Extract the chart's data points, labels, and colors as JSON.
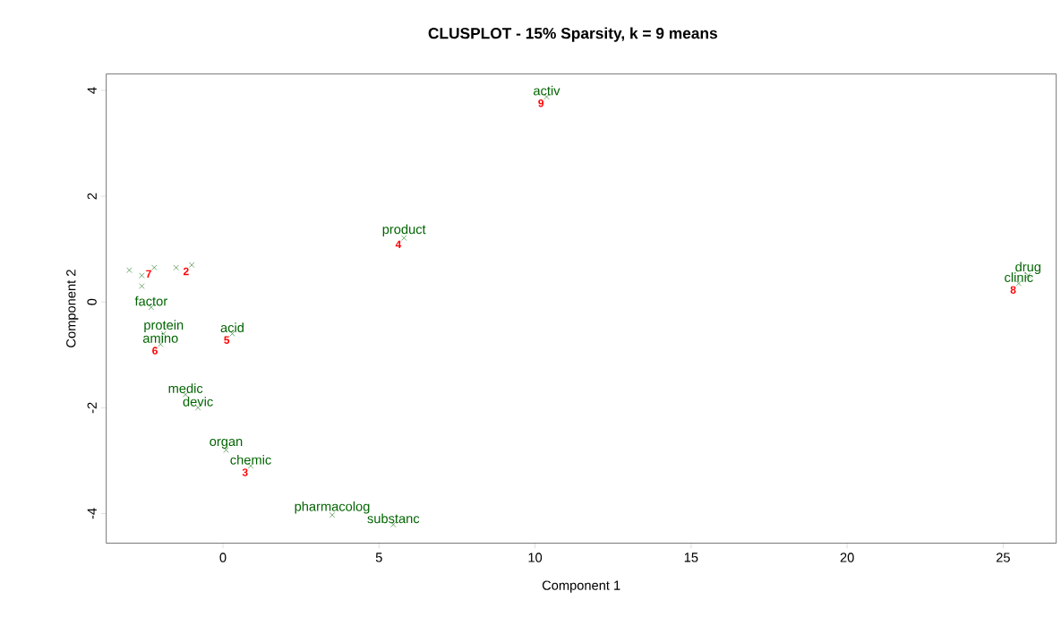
{
  "chart_data": {
    "type": "scatter",
    "title": "CLUSPLOT - 15% Sparsity, k = 9 means",
    "xlabel": "Component 1",
    "ylabel": "Component 2",
    "xlim": [
      -3.74,
      26.7
    ],
    "ylim": [
      -4.56,
      4.31
    ],
    "xticks": [
      0,
      5,
      10,
      15,
      20,
      25
    ],
    "yticks": [
      -4,
      -2,
      0,
      2,
      4
    ],
    "marker": "cross",
    "grid": false,
    "series": [
      {
        "color": "#006400",
        "x": [
          10.37,
          5.8,
          5.46,
          3.5,
          0.89,
          0.1,
          -1.2,
          -0.8,
          0.3,
          -1.9,
          -2.0,
          -2.3,
          25.8,
          25.5,
          -2.6,
          -2.6,
          -2.2,
          -1.5,
          -1.0,
          -3.0
        ],
        "values": [
          3.88,
          1.21,
          -4.21,
          -4.03,
          -3.1,
          -2.8,
          -1.75,
          -2.0,
          -0.6,
          -0.6,
          -0.8,
          -0.1,
          0.5,
          0.35,
          0.3,
          0.5,
          0.65,
          0.65,
          0.7,
          0.6
        ],
        "value_labels": [
          "activ",
          "product",
          "substanc",
          "pharmacolog",
          "chemic",
          "organ",
          "medic",
          "devic",
          "acid",
          "protein",
          "amino",
          "factor",
          "drug",
          "clinic",
          null,
          null,
          null,
          null,
          null,
          null
        ]
      }
    ],
    "annotations": [
      {
        "text": "9",
        "x": 10.37,
        "y": 3.88
      },
      {
        "text": "4",
        "x": 5.8,
        "y": 1.21
      },
      {
        "text": "3",
        "x": 0.89,
        "y": -3.1
      },
      {
        "text": "5",
        "x": 0.3,
        "y": -0.6
      },
      {
        "text": "6",
        "x": -2.0,
        "y": -0.8
      },
      {
        "text": "7",
        "x": -2.2,
        "y": 0.65
      },
      {
        "text": "2",
        "x": -1.0,
        "y": 0.7
      },
      {
        "text": "8",
        "x": 25.5,
        "y": 0.35
      }
    ]
  }
}
